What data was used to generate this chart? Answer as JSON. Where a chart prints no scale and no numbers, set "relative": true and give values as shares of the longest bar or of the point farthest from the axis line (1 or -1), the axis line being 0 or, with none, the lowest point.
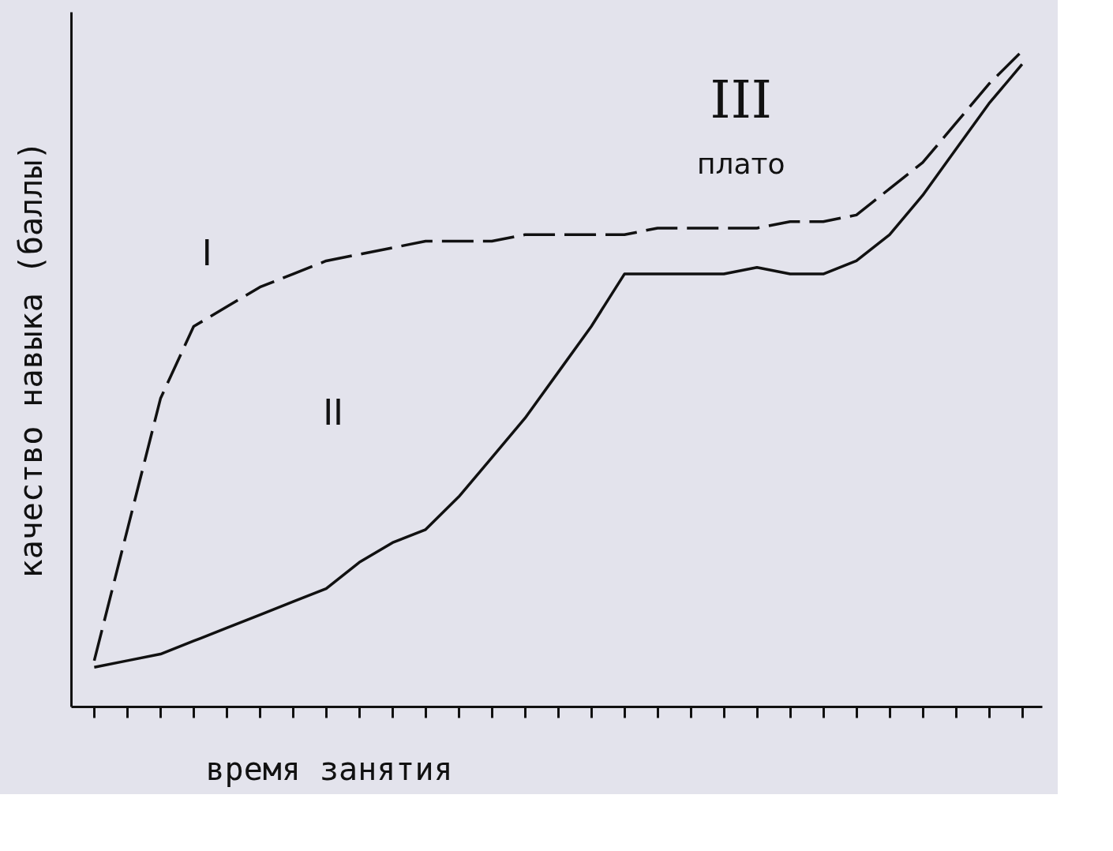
{
  "chart_data": {
    "type": "line",
    "relative": true,
    "xlabel": "время занятия",
    "ylabel": "качество навыка (баллы)",
    "categories": [
      null,
      null,
      null,
      null,
      null,
      null,
      null,
      null,
      null,
      null,
      null,
      null,
      null,
      null,
      null,
      null,
      null,
      null,
      null,
      null,
      null,
      null,
      null,
      null,
      null,
      null,
      null,
      null,
      null
    ],
    "series": [
      {
        "color": "#111111",
        "line_style": "dashed",
        "values": [
          0.07,
          0.27,
          0.47,
          0.58,
          0.61,
          0.64,
          0.66,
          0.68,
          0.69,
          0.7,
          0.71,
          0.71,
          0.71,
          0.72,
          0.72,
          0.72,
          0.72,
          0.73,
          0.73,
          0.73,
          0.73,
          0.74,
          0.74,
          0.75,
          0.79,
          0.83,
          0.89,
          0.95,
          1.0
        ]
      },
      {
        "color": "#111111",
        "line_style": "solid",
        "values": [
          0.06,
          0.07,
          0.08,
          0.1,
          0.12,
          0.14,
          0.16,
          0.18,
          0.22,
          0.25,
          0.27,
          0.32,
          0.38,
          0.44,
          0.51,
          0.58,
          0.66,
          0.66,
          0.66,
          0.66,
          0.67,
          0.66,
          0.66,
          0.68,
          0.72,
          0.78,
          0.85,
          0.92,
          0.98
        ]
      }
    ],
    "annotations": [
      "I",
      "II",
      "III",
      "плато"
    ],
    "marker": "none"
  }
}
